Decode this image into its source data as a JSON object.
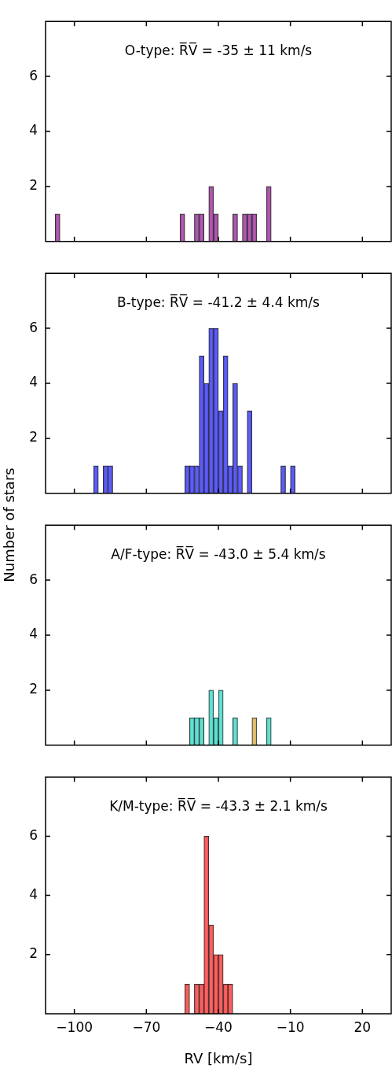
{
  "chart_data": [
    {
      "type": "histogram",
      "title": "O-type: R̅V̅ = -35 ± 11 km/s",
      "bins": [
        -108,
        -106,
        -104,
        -102,
        -100,
        -98,
        -96,
        -94,
        -92,
        -90,
        -88,
        -86,
        -84,
        -82,
        -80,
        -78,
        -76,
        -74,
        -72,
        -70,
        -68,
        -66,
        -64,
        -62,
        -60,
        -58,
        -56,
        -54,
        -52,
        -50,
        -48,
        -46,
        -44,
        -42,
        -40,
        -38,
        -36,
        -34,
        -32,
        -30,
        -28,
        -26,
        -24,
        -22,
        -20,
        -18
      ],
      "series": [
        {
          "color": "#a040a0",
          "values": [
            1,
            0,
            0,
            0,
            0,
            0,
            0,
            0,
            0,
            0,
            0,
            0,
            0,
            0,
            0,
            0,
            0,
            0,
            0,
            0,
            0,
            0,
            0,
            0,
            0,
            0,
            1,
            0,
            0,
            1,
            1,
            0,
            2,
            1,
            0,
            0,
            0,
            1,
            0,
            1,
            1,
            1,
            0,
            0,
            2
          ]
        }
      ],
      "xlim": [
        -112,
        32
      ],
      "xticks": [
        -100,
        -70,
        -40,
        -10,
        20
      ],
      "ylim": [
        0,
        8
      ],
      "yticks": [
        2,
        4,
        6
      ],
      "tick_labels": "y"
    },
    {
      "type": "histogram",
      "title": "B-type: R̅V̅ = -41.2 ± 4.4 km/s",
      "ylabel": "Number of stars",
      "bins": [
        -92,
        -90,
        -88,
        -86,
        -84,
        -82,
        -80,
        -78,
        -76,
        -74,
        -72,
        -70,
        -68,
        -66,
        -64,
        -62,
        -60,
        -58,
        -56,
        -54,
        -52,
        -50,
        -48,
        -46,
        -44,
        -42,
        -40,
        -38,
        -36,
        -34,
        -32,
        -30,
        -28,
        -26,
        -24,
        -22,
        -20,
        -18,
        -16,
        -14,
        -12,
        -10,
        -8
      ],
      "series": [
        {
          "color": "#4444f4",
          "values": [
            1,
            0,
            1,
            1,
            0,
            0,
            0,
            0,
            0,
            0,
            0,
            0,
            0,
            0,
            0,
            0,
            0,
            0,
            0,
            1,
            1,
            1,
            5,
            4,
            6,
            6,
            3,
            5,
            1,
            4,
            1,
            0,
            3,
            0,
            0,
            0,
            0,
            0,
            0,
            1,
            0,
            1
          ]
        }
      ],
      "xlim": [
        -112,
        32
      ],
      "xticks": [
        -100,
        -70,
        -40,
        -10,
        20
      ],
      "ylim": [
        0,
        8
      ],
      "yticks": [
        2,
        4,
        6
      ],
      "tick_labels": "y"
    },
    {
      "type": "histogram",
      "title": "A/F-type: R̅V̅ = -43.0 ± 5.4 km/s",
      "bins": [
        -52,
        -50,
        -48,
        -46,
        -44,
        -42,
        -40,
        -38,
        -36,
        -34,
        -32,
        -30,
        -28,
        -26,
        -24,
        -22,
        -20,
        -18
      ],
      "series": [
        {
          "color": "#48dccc",
          "values": [
            1,
            1,
            1,
            0,
            2,
            1,
            2,
            0,
            0,
            1,
            0,
            0,
            0,
            0,
            0,
            0,
            1
          ]
        },
        {
          "color": "#dcb45a",
          "values": [
            0,
            0,
            0,
            0,
            0,
            0,
            0,
            0,
            0,
            0,
            0,
            0,
            0,
            1,
            0,
            0,
            0
          ]
        }
      ],
      "xlim": [
        -112,
        32
      ],
      "xticks": [
        -100,
        -70,
        -40,
        -10,
        20
      ],
      "ylim": [
        0,
        8
      ],
      "yticks": [
        2,
        4,
        6
      ],
      "tick_labels": "y"
    },
    {
      "type": "histogram",
      "title": "K/M-type: R̅V̅ = -43.3 ± 2.1 km/s",
      "xlabel": "RV [km/s]",
      "bins": [
        -54,
        -52,
        -50,
        -48,
        -46,
        -44,
        -42,
        -40,
        -38,
        -36,
        -34
      ],
      "series": [
        {
          "color": "#f84848",
          "values": [
            1,
            0,
            1,
            1,
            6,
            3,
            2,
            2,
            1,
            1
          ]
        }
      ],
      "xlim": [
        -112,
        32
      ],
      "xticks": [
        -100,
        -70,
        -40,
        -10,
        20
      ],
      "ylim": [
        0,
        8
      ],
      "yticks": [
        2,
        4,
        6
      ]
    }
  ]
}
